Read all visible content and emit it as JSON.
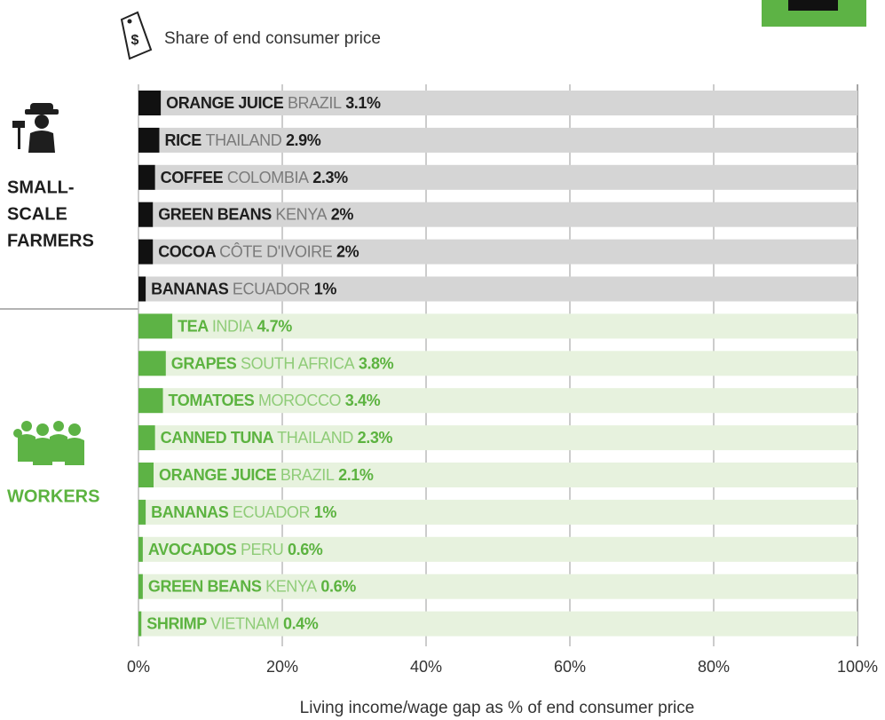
{
  "chart_data": {
    "type": "bar",
    "orientation": "horizontal",
    "note": "Share of end consumer price",
    "xlabel": "Living income/wage gap as % of end consumer price",
    "xlim": [
      0,
      100
    ],
    "xticks": [
      {
        "value": 0,
        "label": "0%"
      },
      {
        "value": 20,
        "label": "20%"
      },
      {
        "value": 40,
        "label": "40%"
      },
      {
        "value": 60,
        "label": "60%"
      },
      {
        "value": 80,
        "label": "80%"
      },
      {
        "value": 100,
        "label": "100%"
      }
    ],
    "grid": true,
    "groups": [
      {
        "name_lines": [
          "SMALL-",
          "SCALE",
          "FARMERS"
        ],
        "color": "#111111",
        "track_color": "#d5d5d5",
        "text_color": "#1e1e1e",
        "country_color": "#7a7a7a",
        "label_color": "#1e1e1e",
        "products": [
          "ORANGE JUICE",
          "RICE",
          "COFFEE",
          "GREEN BEANS",
          "COCOA",
          "BANANAS"
        ],
        "countries": [
          "BRAZIL",
          "THAILAND",
          "COLOMBIA",
          "KENYA",
          "CÔTE D'IVOIRE",
          "ECUADOR"
        ],
        "values": [
          3.1,
          2.9,
          2.3,
          2,
          2,
          1
        ],
        "value_labels": [
          "3.1%",
          "2.9%",
          "2.3%",
          "2%",
          "2%",
          "1%"
        ]
      },
      {
        "name_lines": [
          "WORKERS"
        ],
        "color": "#5db345",
        "track_color": "#e7f2de",
        "text_color": "#5cb340",
        "country_color": "#8fcc78",
        "label_color": "#5cb340",
        "products": [
          "TEA",
          "GRAPES",
          "TOMATOES",
          "CANNED TUNA",
          "ORANGE JUICE",
          "BANANAS",
          "AVOCADOS",
          "GREEN BEANS",
          "SHRIMP"
        ],
        "countries": [
          "INDIA",
          "SOUTH AFRICA",
          "MOROCCO",
          "THAILAND",
          "BRAZIL",
          "ECUADOR",
          "PERU",
          "KENYA",
          "VIETNAM"
        ],
        "values": [
          4.7,
          3.8,
          3.4,
          2.3,
          2.1,
          1,
          0.6,
          0.6,
          0.4
        ],
        "value_labels": [
          "4.7%",
          "3.8%",
          "3.4%",
          "2.3%",
          "2.1%",
          "1%",
          "0.6%",
          "0.6%",
          "0.4%"
        ]
      }
    ]
  }
}
